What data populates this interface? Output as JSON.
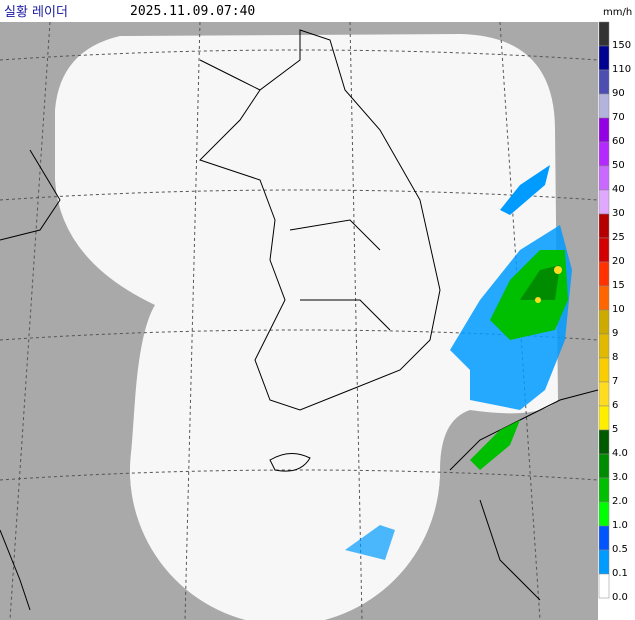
{
  "header": {
    "title": "실황 레이더",
    "time": "2025.11.09.07:40",
    "unit": "mm/h"
  },
  "legend": [
    {
      "label": "150",
      "color": "#333333"
    },
    {
      "label": "110",
      "color": "#000390"
    },
    {
      "label": "90",
      "color": "#4c4eb1"
    },
    {
      "label": "70",
      "color": "#b3b4de"
    },
    {
      "label": "60",
      "color": "#9300e4"
    },
    {
      "label": "50",
      "color": "#b329ff"
    },
    {
      "label": "40",
      "color": "#c969ff"
    },
    {
      "label": "30",
      "color": "#e0a9ff"
    },
    {
      "label": "25",
      "color": "#b40000"
    },
    {
      "label": "20",
      "color": "#d20000"
    },
    {
      "label": "15",
      "color": "#ff3200"
    },
    {
      "label": "10",
      "color": "#ff6600"
    },
    {
      "label": "9",
      "color": "#ccaa00"
    },
    {
      "label": "8",
      "color": "#e0b900"
    },
    {
      "label": "7",
      "color": "#f9cd00"
    },
    {
      "label": "6",
      "color": "#ffdc1f"
    },
    {
      "label": "5",
      "color": "#ffee00"
    },
    {
      "label": "4.0",
      "color": "#005a00"
    },
    {
      "label": "3.0",
      "color": "#008c00"
    },
    {
      "label": "2.0",
      "color": "#00be00"
    },
    {
      "label": "1.0",
      "color": "#00ff00"
    },
    {
      "label": "0.5",
      "color": "#0055ff"
    },
    {
      "label": "0.1",
      "color": "#009bff"
    },
    {
      "label": "0.0",
      "color": "#ffffff"
    }
  ]
}
